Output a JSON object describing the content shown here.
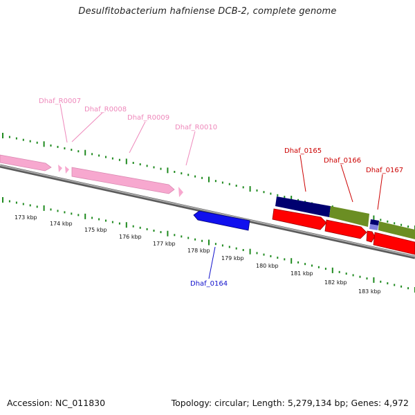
{
  "title": "Desulfitobacterium hafniense DCB-2, complete genome",
  "footer": {
    "accession": "Accession: NC_011830",
    "summary": "Topology: circular; Length: 5,279,134 bp; Genes: 4,972"
  },
  "colors": {
    "backbone": "#8a8a8a",
    "tick_green": "#1f8a1f",
    "rna_pink": "#f7a8cf",
    "rna_label": "#ee88bb",
    "gene_red": "#ff0000",
    "gene_red_label": "#cc0000",
    "gene_blue": "#1010ee",
    "gene_blue_label": "#1010cc",
    "gene_navy": "#000070",
    "gene_olive": "#6b8e23",
    "gene_lavender": "#8080e0"
  },
  "scale_labels": [
    "173 kbp",
    "174 kbp",
    "175 kbp",
    "176 kbp",
    "177 kbp",
    "178 kbp",
    "179 kbp",
    "180 kbp",
    "181 kbp",
    "182 kbp",
    "183 kbp"
  ],
  "gene_labels": {
    "rna": [
      "Dhaf_R0007",
      "Dhaf_R0008",
      "Dhaf_R0009",
      "Dhaf_R0010"
    ],
    "forward": [
      "Dhaf_0165",
      "Dhaf_0166",
      "Dhaf_0167"
    ],
    "reverse": [
      "Dhaf_0164"
    ]
  }
}
